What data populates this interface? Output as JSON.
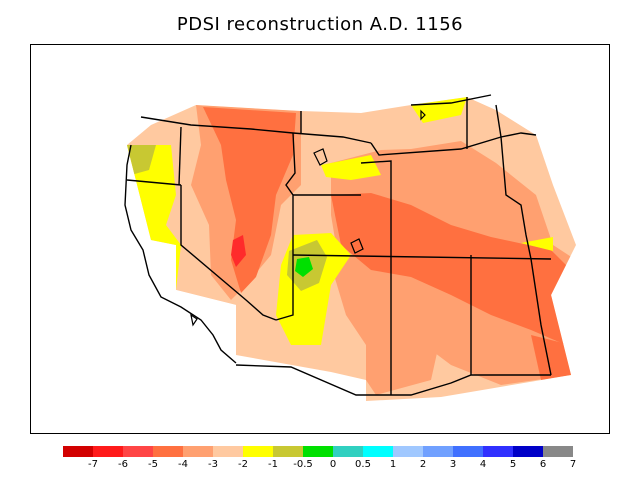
{
  "title": "PDSI reconstruction A.D. 1156",
  "legend": {
    "colors": [
      "#d20000",
      "#ff1a1a",
      "#ff4545",
      "#ff7040",
      "#ffa070",
      "#ffc9a0",
      "#ffff00",
      "#c8c832",
      "#00e000",
      "#30d0c0",
      "#00ffff",
      "#a0c8ff",
      "#70a0ff",
      "#4070ff",
      "#3030ff",
      "#0000c8",
      "#888888"
    ],
    "labels": [
      "-7",
      "-6",
      "-5",
      "-4",
      "-3",
      "-2",
      "-1",
      "-0.5",
      "0",
      "0.5",
      "1",
      "2",
      "3",
      "4",
      "5",
      "6",
      "7"
    ]
  }
}
